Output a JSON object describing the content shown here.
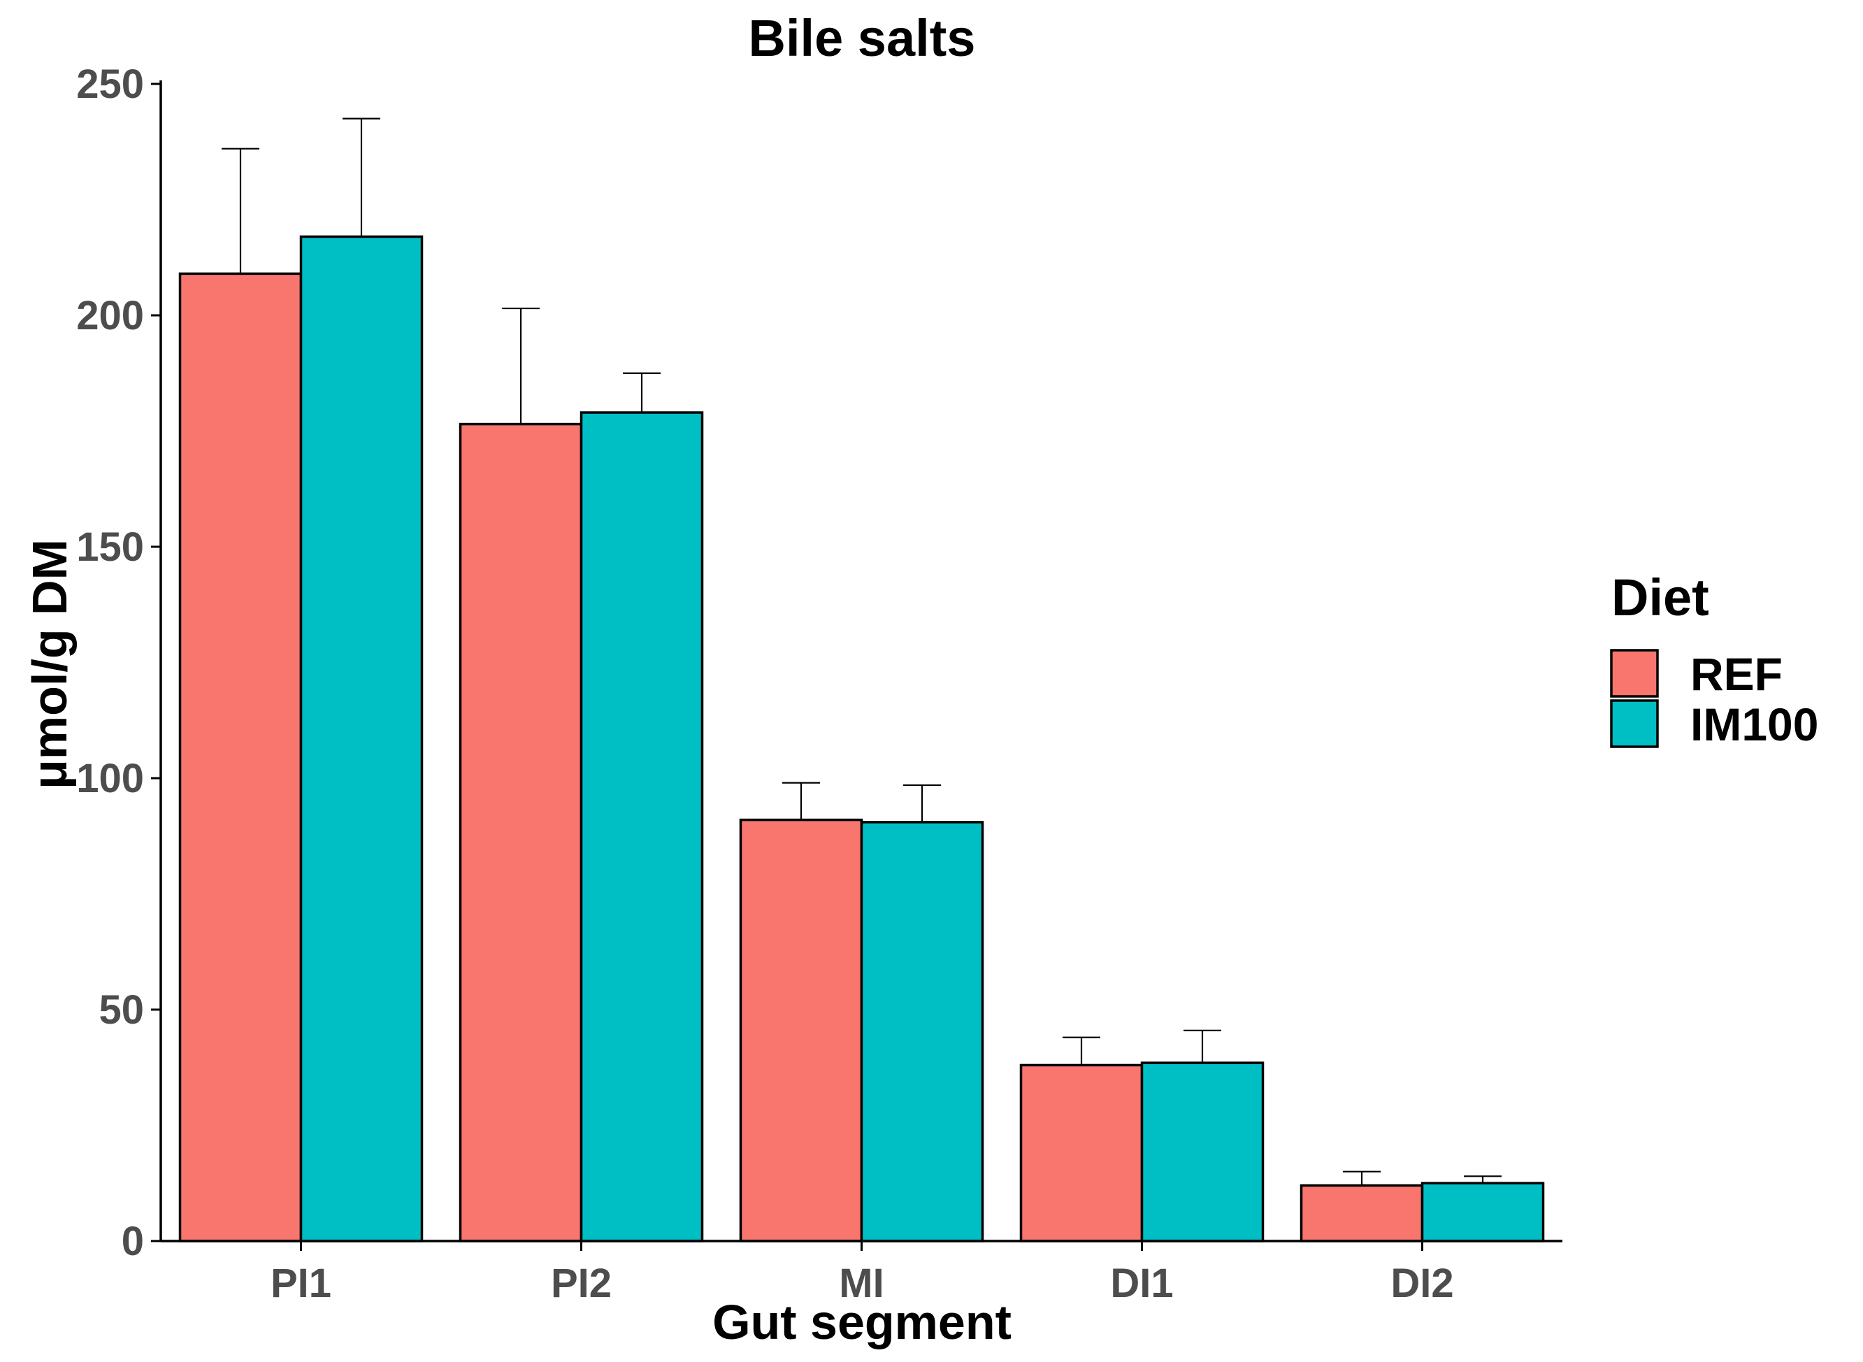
{
  "chart_data": {
    "type": "bar",
    "title": "Bile salts",
    "xlabel": "Gut segment",
    "ylabel": "μmol/g DM",
    "categories": [
      "PI1",
      "PI2",
      "MI",
      "DI1",
      "DI2"
    ],
    "series": [
      {
        "name": "REF",
        "color": "#f8766d",
        "values": [
          209,
          176.5,
          91,
          38,
          12
        ],
        "error": [
          27,
          25,
          8,
          6,
          3
        ]
      },
      {
        "name": "IM100",
        "color": "#00bfc4",
        "values": [
          217,
          179,
          90.5,
          38.5,
          12.5
        ],
        "error": [
          25.5,
          8.5,
          8,
          7,
          1.5
        ]
      }
    ],
    "ylim": [
      0,
      250
    ],
    "yticks": [
      0,
      50,
      100,
      150,
      200,
      250
    ],
    "legend": {
      "title": "Diet",
      "position": "right"
    },
    "grid": false
  }
}
